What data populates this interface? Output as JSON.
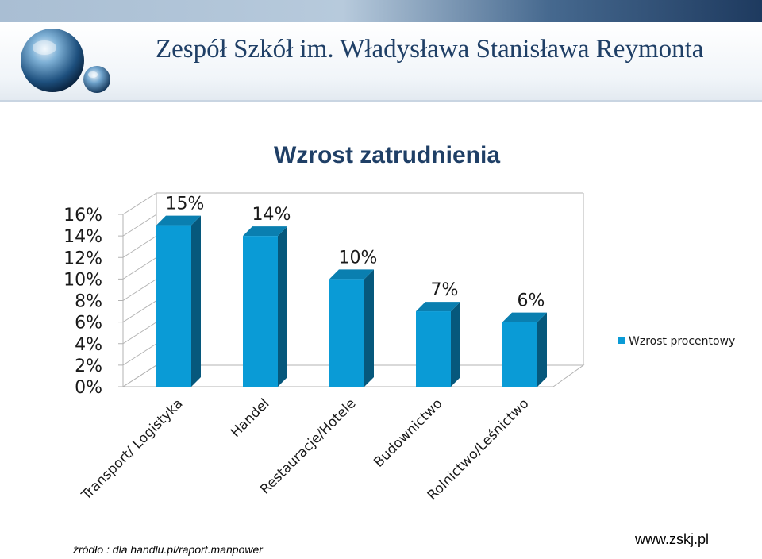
{
  "slide": {
    "header_title": "Zespół Szkół  im. Władysława Stanisława Reymonta",
    "source_text": "źródło : dla handlu.pl/raport.manpower",
    "website": "www.zskj.pl"
  },
  "colors": {
    "bar_front": "#0a9bd6",
    "bar_side": "#06587c",
    "bar_top": "#0a7fb0",
    "title": "#1f3f66"
  },
  "chart_data": {
    "type": "bar",
    "title": "Wzrost zatrudnienia",
    "categories": [
      "Transport/ Logistyka",
      "Handel",
      "Restauracje/Hotele",
      "Budownictwo",
      "Rolnictwo/Leśnictwo"
    ],
    "series": [
      {
        "name": "Wzrost procentowy",
        "values": [
          15,
          14,
          10,
          7,
          6
        ]
      }
    ],
    "data_labels": [
      "15%",
      "14%",
      "10%",
      "7%",
      "6%"
    ],
    "y_ticks": [
      "0%",
      "2%",
      "4%",
      "6%",
      "8%",
      "10%",
      "12%",
      "14%",
      "16%"
    ],
    "ylim": [
      0,
      16
    ],
    "legend": "right",
    "grid": false,
    "three_d": true
  }
}
